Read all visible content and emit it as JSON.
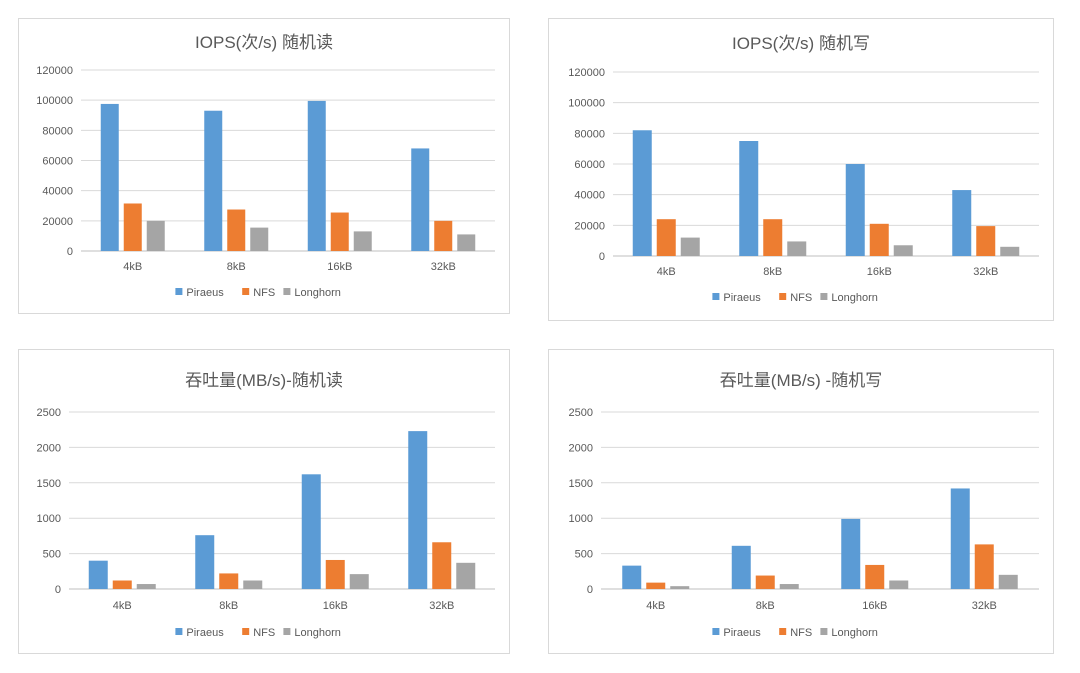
{
  "colors": {
    "Piraeus": "#5b9bd5",
    "NFS": "#ed7d31",
    "Longhorn": "#a5a5a5"
  },
  "chart_data": [
    {
      "type": "bar",
      "title": "IOPS(次/s) 随机读",
      "categories": [
        "4kB",
        "8kB",
        "16kB",
        "32kB"
      ],
      "yticks": [
        "0",
        "20000",
        "40000",
        "60000",
        "80000",
        "100000",
        "120000"
      ],
      "ylim": [
        0,
        120000
      ],
      "series": [
        {
          "name": "Piraeus",
          "values": [
            97500,
            93000,
            99500,
            68000
          ]
        },
        {
          "name": "NFS",
          "values": [
            31500,
            27500,
            25500,
            20000
          ]
        },
        {
          "name": "Longhorn",
          "values": [
            20000,
            15500,
            13000,
            11000
          ]
        }
      ]
    },
    {
      "type": "bar",
      "title": "IOPS(次/s) 随机写",
      "categories": [
        "4kB",
        "8kB",
        "16kB",
        "32kB"
      ],
      "yticks": [
        "0",
        "20000",
        "40000",
        "60000",
        "80000",
        "100000",
        "120000"
      ],
      "ylim": [
        0,
        120000
      ],
      "series": [
        {
          "name": "Piraeus",
          "values": [
            82000,
            75000,
            60000,
            43000
          ]
        },
        {
          "name": "NFS",
          "values": [
            24000,
            24000,
            21000,
            19500
          ]
        },
        {
          "name": "Longhorn",
          "values": [
            12000,
            9500,
            7000,
            6000
          ]
        }
      ]
    },
    {
      "type": "bar",
      "title": "吞吐量(MB/s)-随机读",
      "categories": [
        "4kB",
        "8kB",
        "16kB",
        "32kB"
      ],
      "yticks": [
        "0",
        "500",
        "1000",
        "1500",
        "2000",
        "2500"
      ],
      "ylim": [
        0,
        2500
      ],
      "series": [
        {
          "name": "Piraeus",
          "values": [
            400,
            760,
            1620,
            2230
          ]
        },
        {
          "name": "NFS",
          "values": [
            120,
            220,
            410,
            660
          ]
        },
        {
          "name": "Longhorn",
          "values": [
            70,
            120,
            210,
            370
          ]
        }
      ]
    },
    {
      "type": "bar",
      "title": "吞吐量(MB/s) -随机写",
      "categories": [
        "4kB",
        "8kB",
        "16kB",
        "32kB"
      ],
      "yticks": [
        "0",
        "500",
        "1000",
        "1500",
        "2000",
        "2500"
      ],
      "ylim": [
        0,
        2500
      ],
      "series": [
        {
          "name": "Piraeus",
          "values": [
            330,
            610,
            990,
            1420
          ]
        },
        {
          "name": "NFS",
          "values": [
            90,
            190,
            340,
            630
          ]
        },
        {
          "name": "Longhorn",
          "values": [
            40,
            70,
            120,
            200
          ]
        }
      ]
    }
  ]
}
